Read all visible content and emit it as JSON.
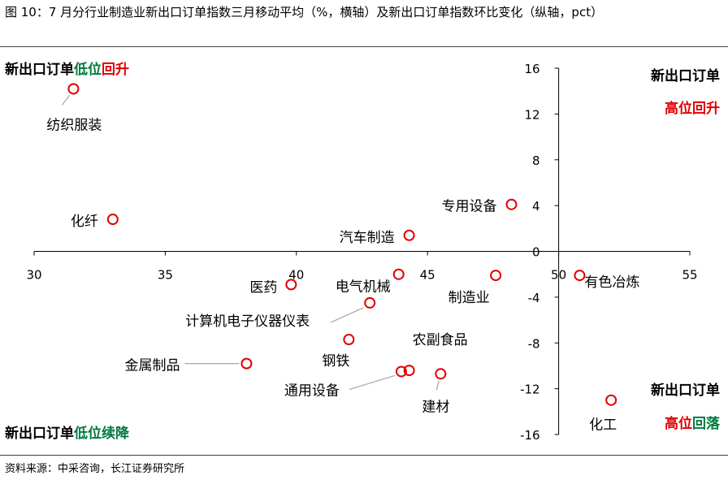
{
  "figure": {
    "title": "图 10：7 月分行业制造业新出口订单指数三月移动平均（%，横轴）及新出口订单指数环比变化（纵轴，pct）",
    "source": "资料来源：中采咨询，长江证券研究所"
  },
  "colors": {
    "marker": "#e00000",
    "green": "#007a3d",
    "red": "#e00000",
    "axis": "#000000",
    "leader": "#a6a6a6"
  },
  "quadrants": {
    "top_left": {
      "black": "新出口订单",
      "green": "低位",
      "red": "回升"
    },
    "top_right": {
      "line1": "新出口订单",
      "line2": "高位回升"
    },
    "bottom_left": {
      "black": "新出口订单",
      "green": "低位续降"
    },
    "bottom_right": {
      "line1": "新出口订单",
      "red": "高位",
      "green": "回落"
    }
  },
  "chart_data": {
    "type": "scatter",
    "xlim": [
      30,
      55
    ],
    "ylim": [
      -16,
      16
    ],
    "x_ticks": [
      30,
      35,
      40,
      45,
      50,
      55
    ],
    "y_ticks": [
      16,
      12,
      8,
      4,
      0,
      -4,
      -8,
      -12,
      -16
    ],
    "points": [
      {
        "label": "纺织服装",
        "x": 31.5,
        "y": 14.2
      },
      {
        "label": "化纤",
        "x": 33.0,
        "y": 2.8
      },
      {
        "label": "专用设备",
        "x": 48.2,
        "y": 4.1
      },
      {
        "label": "汽车制造",
        "x": 44.3,
        "y": 1.4
      },
      {
        "label": "电气机械",
        "x": 43.9,
        "y": -2.0
      },
      {
        "label": "医药",
        "x": 39.8,
        "y": -2.9
      },
      {
        "label": "制造业",
        "x": 47.6,
        "y": -2.1
      },
      {
        "label": "有色冶炼",
        "x": 50.8,
        "y": -2.1
      },
      {
        "label": "计算机电子仪器仪表",
        "x": 42.8,
        "y": -4.5
      },
      {
        "label": "钢铁",
        "x": 42.0,
        "y": -7.7
      },
      {
        "label": "金属制品",
        "x": 38.1,
        "y": -9.8
      },
      {
        "label": "农副食品",
        "x": 44.3,
        "y": -10.4
      },
      {
        "label": "通用设备",
        "x": 44.0,
        "y": -10.5
      },
      {
        "label": "建材",
        "x": 45.5,
        "y": -10.7
      },
      {
        "label": "化工",
        "x": 52.0,
        "y": -13.0
      }
    ]
  }
}
